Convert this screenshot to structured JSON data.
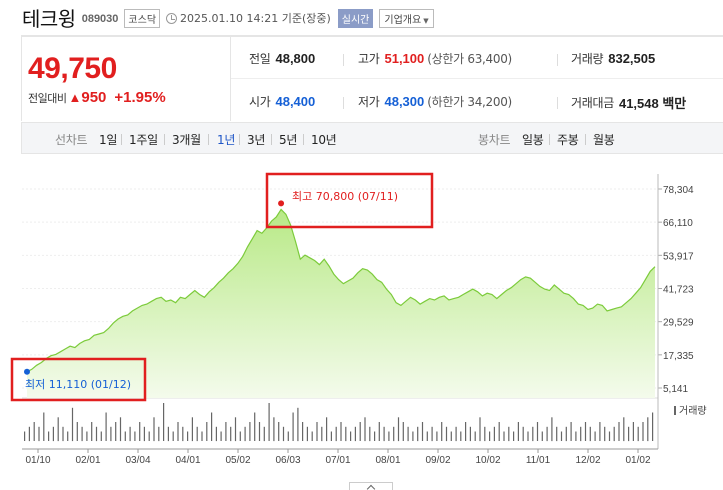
{
  "header": {
    "stock_name": "테크윙",
    "stock_code": "089030",
    "market_badge": "코스닥",
    "timestamp": "2025.01.10 14:21 기준(장중)",
    "live_badge": "실시간",
    "overview_button": "기업개요"
  },
  "summary": {
    "price": "49,750",
    "change_label": "전일대비",
    "change_arrow": "▲",
    "change_amount": "950",
    "change_pct": "+1.95%",
    "prev_close_label": "전일",
    "prev_close": "48,800",
    "high_label": "고가",
    "high": "51,100",
    "upper_limit": "(상한가 63,400)",
    "volume_label": "거래량",
    "volume": "832,505",
    "open_label": "시가",
    "open": "48,400",
    "low_label": "저가",
    "low": "48,300",
    "lower_limit": "(하한가 34,200)",
    "amount_label": "거래대금",
    "amount": "41,548 백만"
  },
  "period_bar": {
    "line_chart_label": "선차트",
    "periods": [
      "1일",
      "1주일",
      "3개월",
      "1년",
      "3년",
      "5년",
      "10년"
    ],
    "selected_period": "1년",
    "candle_chart_label": "봉차트",
    "candle_periods": [
      "일봉",
      "주봉",
      "월봉"
    ]
  },
  "chart_data": {
    "type": "area",
    "title": "",
    "xlabel": "",
    "ylabel": "",
    "x_tick_labels": [
      "01/10",
      "02/01",
      "03/04",
      "04/01",
      "05/02",
      "06/03",
      "07/01",
      "08/01",
      "09/02",
      "10/02",
      "11/01",
      "12/02",
      "01/02"
    ],
    "y_tick_labels": [
      "78,304",
      "66,110",
      "53,917",
      "41,723",
      "29,529",
      "17,335",
      "5,141"
    ],
    "ylim": [
      5141,
      78304
    ],
    "max_annotation": "최고 70,800 (07/11)",
    "min_annotation": "최저 11,110 (01/12)",
    "volume_legend": "거래량",
    "grid": true,
    "colors": {
      "line": "#7ccb3b",
      "fill_top": "#b8e986",
      "fill_bottom": "#f4fbec",
      "max_marker": "#e11f1f",
      "min_marker": "#1560d6",
      "highlight_box": "#e11f1f"
    },
    "series": [
      {
        "values": [
          11110,
          12000,
          13500,
          14500,
          16000,
          17000,
          17500,
          18500,
          19500,
          20500,
          20000,
          21500,
          22500,
          23000,
          24500,
          25000,
          25500,
          27000,
          29000,
          30500,
          31500,
          32000,
          33500,
          34500,
          35500,
          36000,
          37000,
          38000,
          38500,
          37000,
          37500,
          36500,
          38500,
          38000,
          39500,
          41000,
          39500,
          38500,
          40500,
          42000,
          44000,
          45500,
          47500,
          49000,
          51000,
          53500,
          57000,
          60000,
          63000,
          62000,
          64000,
          66500,
          68000,
          70800,
          69000,
          65000,
          59000,
          52500,
          54000,
          53000,
          52000,
          50500,
          52500,
          50000,
          47000,
          45000,
          43500,
          44500,
          45500,
          47500,
          49000,
          48500,
          47000,
          45000,
          44000,
          41500,
          39500,
          36500,
          35500,
          37000,
          38500,
          37500,
          36000,
          37000,
          38000,
          37500,
          38500,
          39000,
          37500,
          38000,
          38500,
          39500,
          40500,
          41500,
          40500,
          39000,
          40000,
          39500,
          38000,
          39500,
          41000,
          42000,
          43500,
          45000,
          46000,
          45500,
          44000,
          42500,
          41500,
          41000,
          43000,
          41500,
          40000,
          39500,
          38000,
          36000,
          35500,
          34000,
          34500,
          36000,
          35500,
          33500,
          34000,
          34500,
          35000,
          36500,
          38000,
          40000,
          42000,
          45000,
          48000,
          49750
        ]
      }
    ],
    "volume": [
      2,
      3,
      4,
      3,
      6,
      2,
      3,
      5,
      3,
      2,
      7,
      4,
      3,
      2,
      4,
      3,
      2,
      6,
      3,
      4,
      5,
      2,
      3,
      2,
      4,
      3,
      2,
      5,
      3,
      8,
      3,
      2,
      4,
      3,
      2,
      5,
      3,
      2,
      4,
      6,
      3,
      2,
      4,
      3,
      5,
      2,
      3,
      4,
      6,
      4,
      3,
      8,
      5,
      4,
      3,
      2,
      6,
      7,
      4,
      3,
      2,
      4,
      3,
      5,
      2,
      3,
      4,
      3,
      2,
      3,
      4,
      5,
      3,
      2,
      4,
      3,
      2,
      3,
      5,
      4,
      3,
      2,
      3,
      4,
      2,
      3,
      2,
      4,
      3,
      2,
      3,
      2,
      4,
      3,
      2,
      5,
      3,
      2,
      3,
      4,
      2,
      3,
      2,
      4,
      3,
      2,
      3,
      4,
      2,
      3,
      5,
      3,
      2,
      3,
      4,
      2,
      3,
      4,
      3,
      2,
      4,
      3,
      2,
      3,
      4,
      5,
      3,
      4,
      3,
      4,
      5,
      6
    ]
  }
}
